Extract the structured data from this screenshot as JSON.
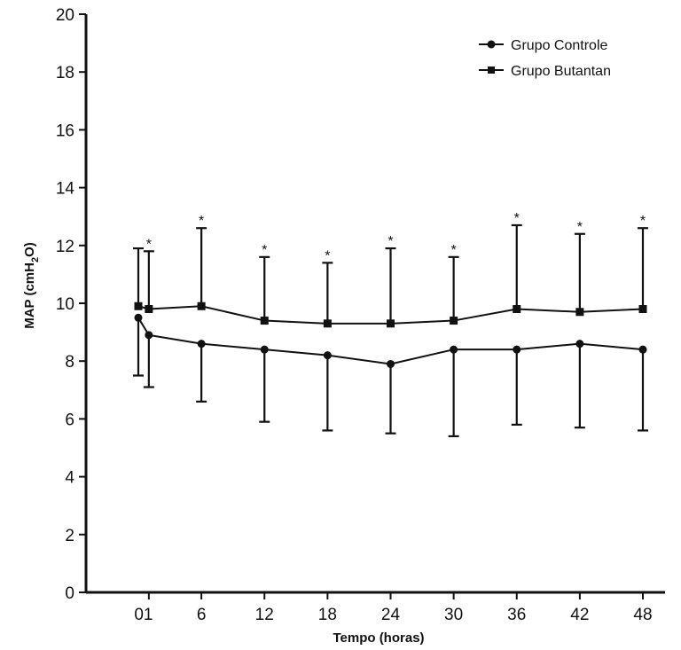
{
  "chart_data": {
    "type": "line",
    "xlabel": "Tempo (horas)",
    "ylabel_main": "MAP (cmH",
    "ylabel_sub": "2",
    "ylabel_end": "O)",
    "ylim": [
      0,
      20
    ],
    "yticks": [
      0,
      2,
      4,
      6,
      8,
      10,
      12,
      14,
      16,
      18,
      20
    ],
    "x": [
      "0",
      "1",
      "6",
      "12",
      "18",
      "24",
      "30",
      "36",
      "42",
      "48"
    ],
    "xtick_labels": [
      "01",
      "6",
      "12",
      "18",
      "24",
      "30",
      "36",
      "42",
      "48"
    ],
    "grid": false,
    "legend_position": "top-right",
    "significance_marker": "*",
    "series": [
      {
        "name": "Grupo Controle",
        "marker": "circle",
        "values": [
          9.5,
          8.9,
          8.6,
          8.4,
          8.2,
          7.9,
          8.4,
          8.4,
          8.6,
          8.4
        ],
        "error_low": [
          7.5,
          7.1,
          6.6,
          5.9,
          5.6,
          5.5,
          5.4,
          5.8,
          5.7,
          5.6
        ]
      },
      {
        "name": "Grupo Butantan",
        "marker": "square",
        "values": [
          9.9,
          9.8,
          9.9,
          9.4,
          9.3,
          9.3,
          9.4,
          9.8,
          9.7,
          9.8
        ],
        "error_high": [
          11.9,
          11.8,
          12.6,
          11.6,
          11.4,
          11.9,
          11.6,
          12.7,
          12.4,
          12.6
        ],
        "significant": [
          false,
          true,
          true,
          true,
          true,
          true,
          true,
          true,
          true,
          true
        ]
      }
    ]
  }
}
